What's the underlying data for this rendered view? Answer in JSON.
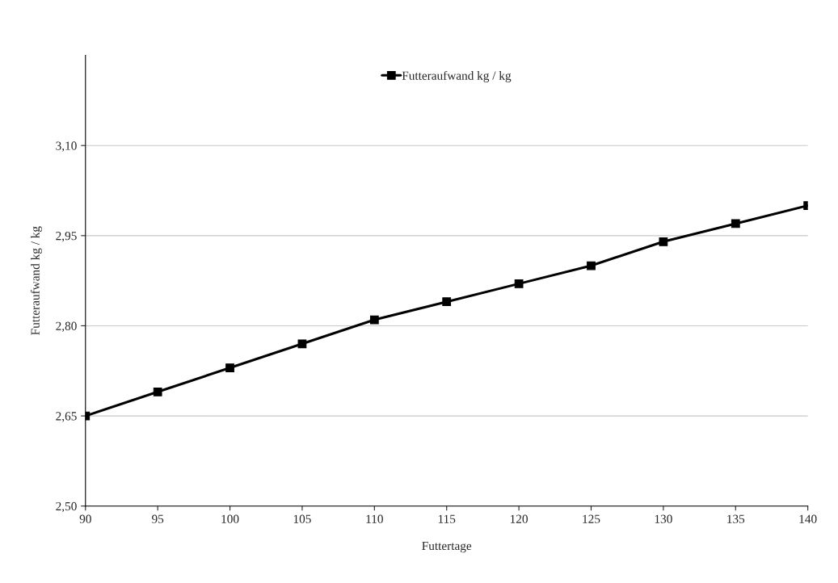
{
  "chart_data": {
    "type": "line",
    "xlabel": "Futtertage",
    "ylabel": "Futteraufwand kg / kg",
    "x": [
      90,
      95,
      100,
      105,
      110,
      115,
      120,
      125,
      130,
      135,
      140
    ],
    "series": [
      {
        "name": "Futteraufwand kg / kg",
        "color": "#000000",
        "values": [
          2.65,
          2.69,
          2.73,
          2.77,
          2.81,
          2.84,
          2.87,
          2.9,
          2.94,
          2.97,
          3.0
        ]
      }
    ],
    "xlim": [
      90,
      140
    ],
    "xticks": [
      90,
      95,
      100,
      105,
      110,
      115,
      120,
      125,
      130,
      135,
      140
    ],
    "ylim": [
      2.5,
      3.25
    ],
    "yticks": [
      {
        "value": 2.5,
        "label": "2,50"
      },
      {
        "value": 2.65,
        "label": "2,65"
      },
      {
        "value": 2.8,
        "label": "2,80"
      },
      {
        "value": 2.95,
        "label": "2,95"
      },
      {
        "value": 3.1,
        "label": "3,10"
      }
    ],
    "grid": "y",
    "legend": "top",
    "marker": "square",
    "line_style": "solid"
  }
}
